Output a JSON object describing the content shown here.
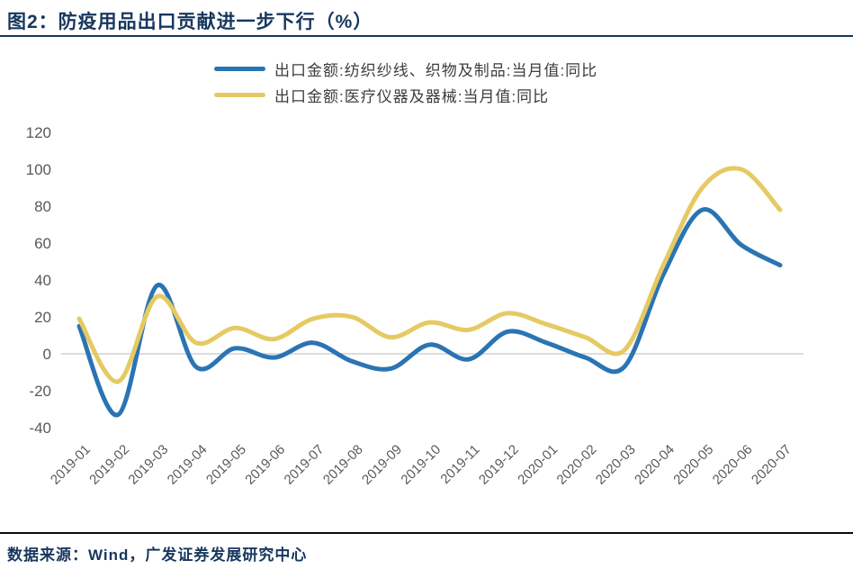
{
  "header": {
    "title": "图2：防疫用品出口贡献进一步下行（%）"
  },
  "footer": {
    "source": "数据来源：Wind，广发证券发展研究中心"
  },
  "chart_data": {
    "type": "line",
    "title": "防疫用品出口贡献进一步下行（%）",
    "x": [
      "2019-01",
      "2019-02",
      "2019-03",
      "2019-04",
      "2019-05",
      "2019-06",
      "2019-07",
      "2019-08",
      "2019-09",
      "2019-10",
      "2019-11",
      "2019-12",
      "2020-01",
      "2020-02",
      "2020-03",
      "2020-04",
      "2020-05",
      "2020-06",
      "2020-07"
    ],
    "series": [
      {
        "name": "出口金额:纺织纱线、织物及制品:当月值:同比",
        "color": "#2B74B4",
        "values": [
          15,
          -33,
          37,
          -7,
          3,
          -2,
          6,
          -4,
          -8,
          5,
          -3,
          12,
          6,
          -2,
          -7,
          43,
          78,
          59,
          48
        ]
      },
      {
        "name": "出口金额:医疗仪器及器械:当月值:同比",
        "color": "#E5CA63",
        "values": [
          19,
          -15,
          31,
          6,
          14,
          8,
          19,
          20,
          9,
          17,
          13,
          22,
          16,
          9,
          2,
          48,
          90,
          100,
          78
        ]
      }
    ],
    "ylim": [
      -40,
      120
    ],
    "ytick_step": 20,
    "yticks": [
      -40,
      -20,
      0,
      20,
      40,
      60,
      80,
      100,
      120
    ],
    "unit": "%",
    "grid": "zero-line-only",
    "legend_position": "top",
    "line_style": "smooth"
  },
  "colors": {
    "title_navy": "#17375E",
    "axis_label_gray": "#595959",
    "zero_line": "#D2D2D2",
    "bottom_rule": "#0A0A0A"
  }
}
